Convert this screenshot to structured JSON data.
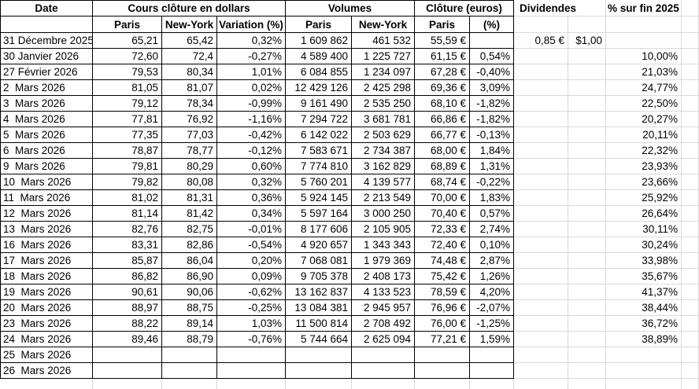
{
  "sheet": {
    "colors": {
      "table_border": "#000000",
      "gridline": "#d9d9d9",
      "text": "#000000",
      "background": "#ffffff"
    },
    "headers": {
      "date": "Date",
      "dollars_group": "Cours clôture en dollars",
      "volumes_group": "Volumes",
      "euros_group": "Clôture (euros)",
      "dividends": "Dividendes",
      "pct_vs_end_2025": "% sur fin 2025",
      "sub_paris_usd": "Paris",
      "sub_newyork_usd": "New-York",
      "sub_variation": "Variation (%)",
      "sub_paris_vol": "Paris",
      "sub_newyork_vol": "New-York",
      "sub_paris_eur": "Paris",
      "sub_pct_eur": "(%)"
    },
    "rows": [
      {
        "date": "31 Décembre 2025",
        "close_paris_usd": "65,21",
        "close_ny_usd": "65,42",
        "variation_pct": "0,32%",
        "volume_paris": "1 609 862",
        "volume_ny": "461 532",
        "close_paris_eur": "55,59 €",
        "close_eur_pct": "",
        "dividend_eur": "0,85 €",
        "dividend_usd": "$1,00",
        "pct_vs_end_2025": ""
      },
      {
        "date": "30 Janvier 2026",
        "close_paris_usd": "72,60",
        "close_ny_usd": "72,4",
        "variation_pct": "-0,27%",
        "volume_paris": "4 589 400",
        "volume_ny": "1 225 727",
        "close_paris_eur": "61,15 €",
        "close_eur_pct": "0,54%",
        "dividend_eur": "",
        "dividend_usd": "",
        "pct_vs_end_2025": "10,00%"
      },
      {
        "date": "27 Février 2026",
        "close_paris_usd": "79,53",
        "close_ny_usd": "80,34",
        "variation_pct": "1,01%",
        "volume_paris": "6 084 855",
        "volume_ny": "1 234 097",
        "close_paris_eur": "67,28 €",
        "close_eur_pct": "-0,40%",
        "dividend_eur": "",
        "dividend_usd": "",
        "pct_vs_end_2025": "21,03%"
      },
      {
        "date": "2  Mars 2026",
        "close_paris_usd": "81,05",
        "close_ny_usd": "81,07",
        "variation_pct": "0,02%",
        "volume_paris": "12 429 126",
        "volume_ny": "2 425 298",
        "close_paris_eur": "69,36 €",
        "close_eur_pct": "3,09%",
        "dividend_eur": "",
        "dividend_usd": "",
        "pct_vs_end_2025": "24,77%"
      },
      {
        "date": "3  Mars 2026",
        "close_paris_usd": "79,12",
        "close_ny_usd": "78,34",
        "variation_pct": "-0,99%",
        "volume_paris": "9 161 490",
        "volume_ny": "2 535 250",
        "close_paris_eur": "68,10 €",
        "close_eur_pct": "-1,82%",
        "dividend_eur": "",
        "dividend_usd": "",
        "pct_vs_end_2025": "22,50%"
      },
      {
        "date": "4  Mars 2026",
        "close_paris_usd": "77,81",
        "close_ny_usd": "76,92",
        "variation_pct": "-1,16%",
        "volume_paris": "7 294 722",
        "volume_ny": "3 681 781",
        "close_paris_eur": "66,86 €",
        "close_eur_pct": "-1,82%",
        "dividend_eur": "",
        "dividend_usd": "",
        "pct_vs_end_2025": "20,27%"
      },
      {
        "date": "5  Mars 2026",
        "close_paris_usd": "77,35",
        "close_ny_usd": "77,03",
        "variation_pct": "-0,42%",
        "volume_paris": "6 142 022",
        "volume_ny": "2 503 629",
        "close_paris_eur": "66,77 €",
        "close_eur_pct": "-0,13%",
        "dividend_eur": "",
        "dividend_usd": "",
        "pct_vs_end_2025": "20,11%"
      },
      {
        "date": "6  Mars 2026",
        "close_paris_usd": "78,87",
        "close_ny_usd": "78,77",
        "variation_pct": "-0,12%",
        "volume_paris": "7 583 671",
        "volume_ny": "2 734 387",
        "close_paris_eur": "68,00 €",
        "close_eur_pct": "1,84%",
        "dividend_eur": "",
        "dividend_usd": "",
        "pct_vs_end_2025": "22,32%"
      },
      {
        "date": "9  Mars 2026",
        "close_paris_usd": "79,81",
        "close_ny_usd": "80,29",
        "variation_pct": "0,60%",
        "volume_paris": "7 774 810",
        "volume_ny": "3 162 829",
        "close_paris_eur": "68,89 €",
        "close_eur_pct": "1,31%",
        "dividend_eur": "",
        "dividend_usd": "",
        "pct_vs_end_2025": "23,93%"
      },
      {
        "date": "10  Mars 2026",
        "close_paris_usd": "79,82",
        "close_ny_usd": "80,08",
        "variation_pct": "0,32%",
        "volume_paris": "5 760 201",
        "volume_ny": "4 139 577",
        "close_paris_eur": "68,74 €",
        "close_eur_pct": "-0,22%",
        "dividend_eur": "",
        "dividend_usd": "",
        "pct_vs_end_2025": "23,66%"
      },
      {
        "date": "11  Mars 2026",
        "close_paris_usd": "81,02",
        "close_ny_usd": "81,31",
        "variation_pct": "0,36%",
        "volume_paris": "5 924 145",
        "volume_ny": "2 213 549",
        "close_paris_eur": "70,00 €",
        "close_eur_pct": "1,83%",
        "dividend_eur": "",
        "dividend_usd": "",
        "pct_vs_end_2025": "25,92%"
      },
      {
        "date": "12  Mars 2026",
        "close_paris_usd": "81,14",
        "close_ny_usd": "81,42",
        "variation_pct": "0,34%",
        "volume_paris": "5 597 164",
        "volume_ny": "3 000 250",
        "close_paris_eur": "70,40 €",
        "close_eur_pct": "0,57%",
        "dividend_eur": "",
        "dividend_usd": "",
        "pct_vs_end_2025": "26,64%"
      },
      {
        "date": "13  Mars 2026",
        "close_paris_usd": "82,76",
        "close_ny_usd": "82,75",
        "variation_pct": "-0,01%",
        "volume_paris": "8 177 606",
        "volume_ny": "2 105 905",
        "close_paris_eur": "72,33 €",
        "close_eur_pct": "2,74%",
        "dividend_eur": "",
        "dividend_usd": "",
        "pct_vs_end_2025": "30,11%"
      },
      {
        "date": "16  Mars 2026",
        "close_paris_usd": "83,31",
        "close_ny_usd": "82,86",
        "variation_pct": "-0,54%",
        "volume_paris": "4 920 657",
        "volume_ny": "1 343 343",
        "close_paris_eur": "72,40 €",
        "close_eur_pct": "0,10%",
        "dividend_eur": "",
        "dividend_usd": "",
        "pct_vs_end_2025": "30,24%"
      },
      {
        "date": "17  Mars 2026",
        "close_paris_usd": "85,87",
        "close_ny_usd": "86,04",
        "variation_pct": "0,20%",
        "volume_paris": "7 068 081",
        "volume_ny": "1 979 369",
        "close_paris_eur": "74,48 €",
        "close_eur_pct": "2,87%",
        "dividend_eur": "",
        "dividend_usd": "",
        "pct_vs_end_2025": "33,98%"
      },
      {
        "date": "18  Mars 2026",
        "close_paris_usd": "86,82",
        "close_ny_usd": "86,90",
        "variation_pct": "0,09%",
        "volume_paris": "9 705 378",
        "volume_ny": "2 408 173",
        "close_paris_eur": "75,42 €",
        "close_eur_pct": "1,26%",
        "dividend_eur": "",
        "dividend_usd": "",
        "pct_vs_end_2025": "35,67%"
      },
      {
        "date": "19  Mars 2026",
        "close_paris_usd": "90,61",
        "close_ny_usd": "90,06",
        "variation_pct": "-0,62%",
        "volume_paris": "13 162 837",
        "volume_ny": "4 133 523",
        "close_paris_eur": "78,59 €",
        "close_eur_pct": "4,20%",
        "dividend_eur": "",
        "dividend_usd": "",
        "pct_vs_end_2025": "41,37%"
      },
      {
        "date": "20  Mars 2026",
        "close_paris_usd": "88,97",
        "close_ny_usd": "88,75",
        "variation_pct": "-0,25%",
        "volume_paris": "13 084 381",
        "volume_ny": "2 945 957",
        "close_paris_eur": "76,96 €",
        "close_eur_pct": "-2,07%",
        "dividend_eur": "",
        "dividend_usd": "",
        "pct_vs_end_2025": "38,44%"
      },
      {
        "date": "23  Mars 2026",
        "close_paris_usd": "88,22",
        "close_ny_usd": "89,14",
        "variation_pct": "1,03%",
        "volume_paris": "11 500 814",
        "volume_ny": "2 708 492",
        "close_paris_eur": "76,00 €",
        "close_eur_pct": "-1,25%",
        "dividend_eur": "",
        "dividend_usd": "",
        "pct_vs_end_2025": "36,72%"
      },
      {
        "date": "24  Mars 2026",
        "close_paris_usd": "89,46",
        "close_ny_usd": "88,79",
        "variation_pct": "-0,76%",
        "volume_paris": "5 744 664",
        "volume_ny": "2 625 094",
        "close_paris_eur": "77,21 €",
        "close_eur_pct": "1,59%",
        "dividend_eur": "",
        "dividend_usd": "",
        "pct_vs_end_2025": "38,89%"
      },
      {
        "date": "25  Mars 2026",
        "close_paris_usd": "",
        "close_ny_usd": "",
        "variation_pct": "",
        "volume_paris": "",
        "volume_ny": "",
        "close_paris_eur": "",
        "close_eur_pct": "",
        "dividend_eur": "",
        "dividend_usd": "",
        "pct_vs_end_2025": ""
      },
      {
        "date": "26  Mars 2026",
        "close_paris_usd": "",
        "close_ny_usd": "",
        "variation_pct": "",
        "volume_paris": "",
        "volume_ny": "",
        "close_paris_eur": "",
        "close_eur_pct": "",
        "dividend_eur": "",
        "dividend_usd": "",
        "pct_vs_end_2025": ""
      }
    ]
  }
}
